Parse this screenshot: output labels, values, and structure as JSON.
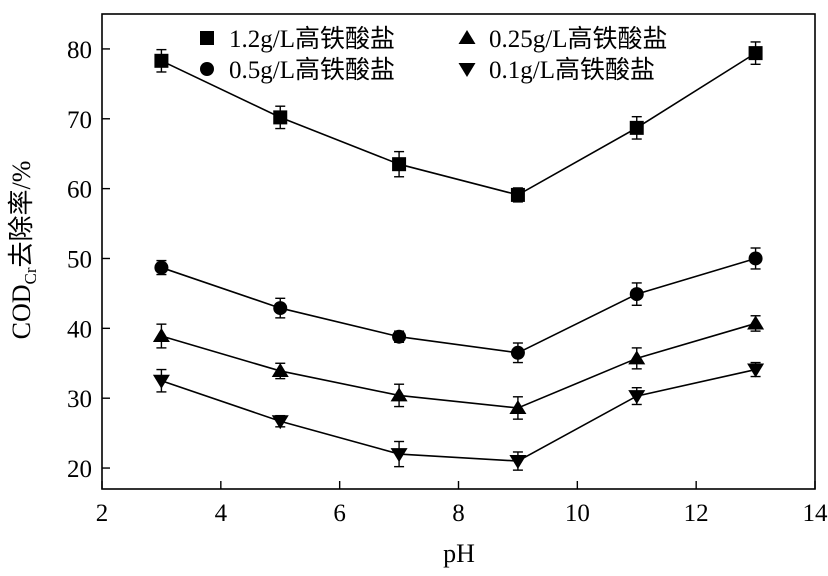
{
  "chart_data": {
    "type": "line",
    "xlabel": "pH",
    "ylabel_main": "COD",
    "ylabel_sub": "Cr",
    "ylabel_rest": "去除率/%",
    "xlim": [
      2,
      14
    ],
    "ylim": [
      17,
      85
    ],
    "x_ticks": [
      2,
      4,
      6,
      8,
      10,
      12,
      14
    ],
    "y_ticks": [
      20,
      30,
      40,
      50,
      60,
      70,
      80
    ],
    "legend_position": "top",
    "x": [
      3,
      5,
      7,
      9,
      11,
      13
    ],
    "series": [
      {
        "name": "1.2g/L高铁酸盐",
        "marker": "square",
        "values": [
          78.3,
          70.2,
          63.5,
          59.1,
          68.7,
          79.4
        ],
        "errors": [
          1.6,
          1.6,
          1.8,
          1.0,
          1.6,
          1.6
        ]
      },
      {
        "name": "0.5g/L高铁酸盐",
        "marker": "circle",
        "values": [
          48.7,
          42.9,
          38.8,
          36.5,
          44.9,
          50.0
        ],
        "errors": [
          1.0,
          1.4,
          0.8,
          1.4,
          1.6,
          1.5
        ]
      },
      {
        "name": "0.25g/L高铁酸盐",
        "marker": "triangle-up",
        "values": [
          38.9,
          33.9,
          30.4,
          28.6,
          35.7,
          40.7
        ],
        "errors": [
          1.7,
          1.1,
          1.6,
          1.6,
          1.5,
          1.1
        ]
      },
      {
        "name": "0.1g/L高铁酸盐",
        "marker": "triangle-down",
        "values": [
          32.5,
          26.7,
          22.0,
          21.0,
          30.3,
          34.1
        ],
        "errors": [
          1.6,
          0.8,
          1.8,
          1.3,
          1.2,
          1.0
        ]
      }
    ]
  }
}
